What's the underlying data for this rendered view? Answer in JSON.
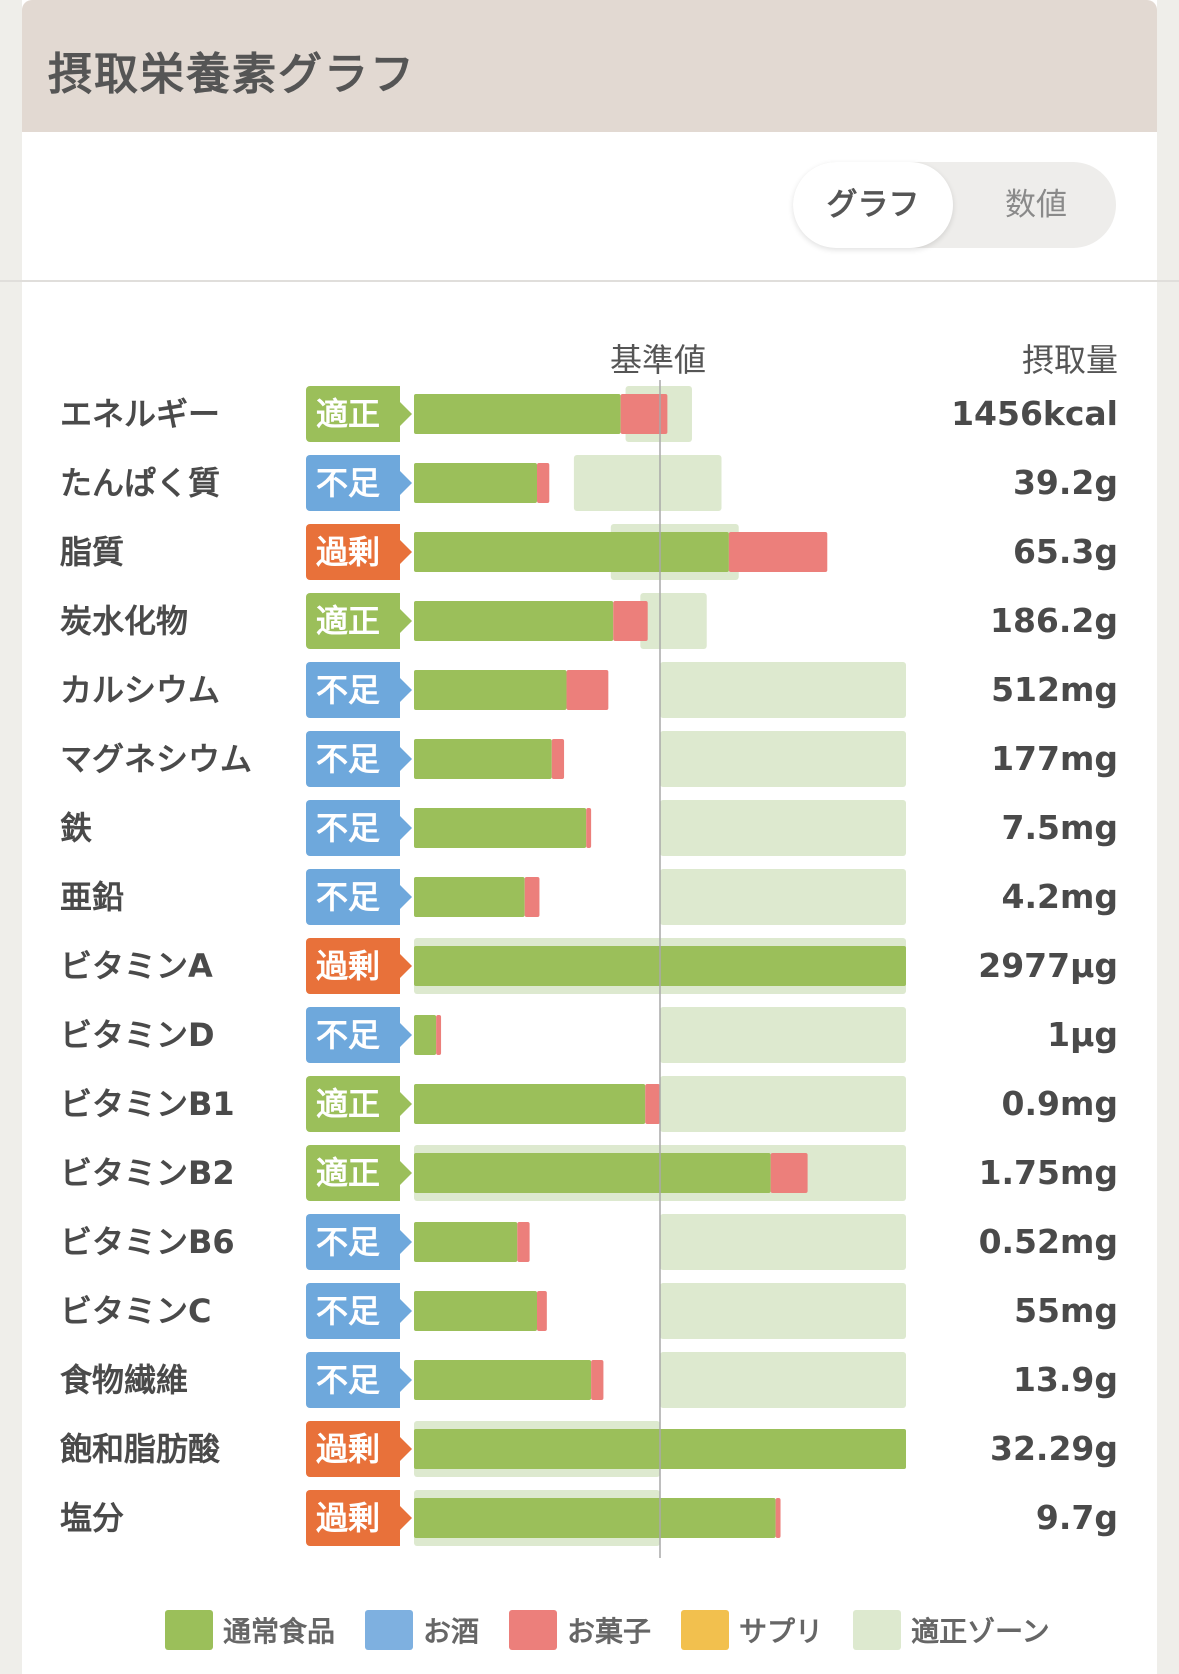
{
  "header": {
    "title": "摂取栄養素グラフ"
  },
  "toggle": {
    "graph_label": "グラフ",
    "number_label": "数値"
  },
  "columns": {
    "reference_label": "基準値",
    "amount_label": "摂取量"
  },
  "status_colors": {
    "適正": "#9bbf5a",
    "不足": "#6ea8dc",
    "過剰": "#e8713a"
  },
  "legend": [
    {
      "label": "通常食品",
      "color": "#9bbf5a"
    },
    {
      "label": "お酒",
      "color": "#7eb0e0"
    },
    {
      "label": "お菓子",
      "color": "#ec7f7b"
    },
    {
      "label": "サプリ",
      "color": "#f2c04e"
    },
    {
      "label": "適正ゾーン",
      "color": "#dde9cf"
    }
  ],
  "chart_data": {
    "type": "bar",
    "orientation": "horizontal",
    "stacked": true,
    "reference_line": 100,
    "x_unit": "% of reference value",
    "xlim": [
      0,
      200
    ],
    "categories": [
      "エネルギー",
      "たんぱく質",
      "脂質",
      "炭水化物",
      "カルシウム",
      "マグネシウム",
      "鉄",
      "亜鉛",
      "ビタミンA",
      "ビタミンD",
      "ビタミンB1",
      "ビタミンB2",
      "ビタミンB6",
      "ビタミンC",
      "食物繊維",
      "飽和脂肪酸",
      "塩分"
    ],
    "status": [
      "適正",
      "不足",
      "過剰",
      "適正",
      "不足",
      "不足",
      "不足",
      "不足",
      "過剰",
      "不足",
      "適正",
      "適正",
      "不足",
      "不足",
      "不足",
      "過剰",
      "過剰"
    ],
    "amounts": [
      "1456kcal",
      "39.2g",
      "65.3g",
      "186.2g",
      "512mg",
      "177mg",
      "7.5mg",
      "4.2mg",
      "2977μg",
      "1μg",
      "0.9mg",
      "1.75mg",
      "0.52mg",
      "55mg",
      "13.9g",
      "32.29g",
      "9.7g"
    ],
    "series": [
      {
        "name": "通常食品",
        "values": [
          84,
          50,
          128,
          81,
          62,
          56,
          70,
          45,
          200,
          9,
          94,
          145,
          42,
          50,
          72,
          200,
          147
        ]
      },
      {
        "name": "お菓子",
        "values": [
          19,
          5,
          40,
          14,
          17,
          5,
          2,
          6,
          0,
          2,
          6,
          15,
          5,
          4,
          5,
          0,
          2
        ]
      }
    ],
    "ok_zone": [
      [
        86,
        113
      ],
      [
        65,
        125
      ],
      [
        80,
        132
      ],
      [
        92,
        119
      ],
      [
        100,
        200
      ],
      [
        100,
        200
      ],
      [
        100,
        200
      ],
      [
        100,
        200
      ],
      [
        0,
        200
      ],
      [
        100,
        200
      ],
      [
        100,
        200
      ],
      [
        0,
        200
      ],
      [
        100,
        200
      ],
      [
        100,
        200
      ],
      [
        100,
        200
      ],
      [
        0,
        100
      ],
      [
        0,
        100
      ]
    ]
  }
}
